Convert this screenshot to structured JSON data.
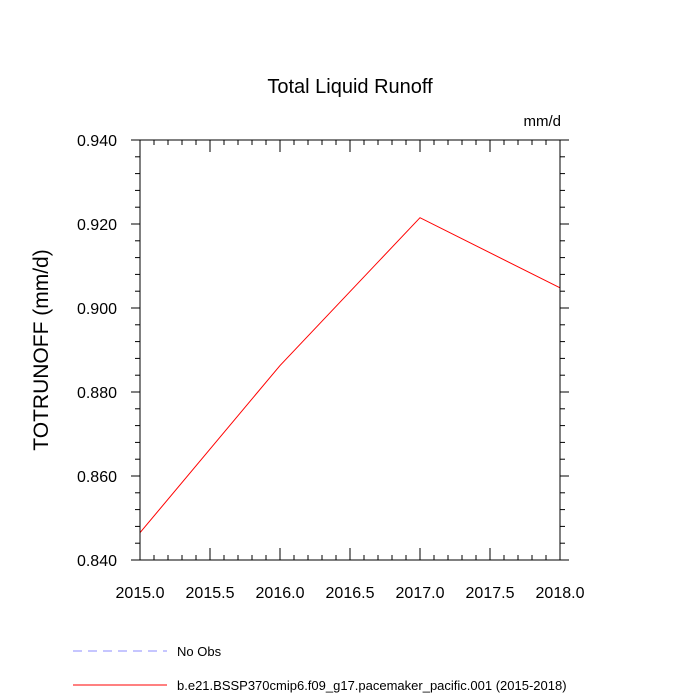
{
  "chart_data": {
    "type": "line",
    "title": "Total Liquid Runoff",
    "units": "mm/d",
    "ylabel": "TOTRUNOFF  (mm/d)",
    "xlabel": "",
    "xlim": [
      2015.0,
      2018.0
    ],
    "ylim": [
      0.84,
      0.94
    ],
    "x_ticks": [
      "2015.0",
      "2015.5",
      "2016.0",
      "2016.5",
      "2017.0",
      "2017.5",
      "2018.0"
    ],
    "x_tick_values": [
      2015.0,
      2015.5,
      2016.0,
      2016.5,
      2017.0,
      2017.5,
      2018.0
    ],
    "y_ticks": [
      "0.840",
      "0.860",
      "0.880",
      "0.900",
      "0.920",
      "0.940"
    ],
    "y_tick_values": [
      0.84,
      0.86,
      0.88,
      0.9,
      0.92,
      0.94
    ],
    "grid": false,
    "legend_placement": "bottom",
    "series": [
      {
        "name": "b.e21.BSSP370cmip6.f09_g17.pacemaker_pacific.001 (2015-2018)",
        "color": "#ff0000",
        "style": "solid",
        "x": [
          2015,
          2016,
          2017,
          2018
        ],
        "y": [
          0.8465,
          0.8863,
          0.9215,
          0.9048
        ]
      }
    ],
    "legend": [
      {
        "label": "No Obs",
        "color": "#8c8cff",
        "style": "dashed"
      },
      {
        "label": "b.e21.BSSP370cmip6.f09_g17.pacemaker_pacific.001 (2015-2018)",
        "color": "#ff0000",
        "style": "solid"
      }
    ]
  }
}
